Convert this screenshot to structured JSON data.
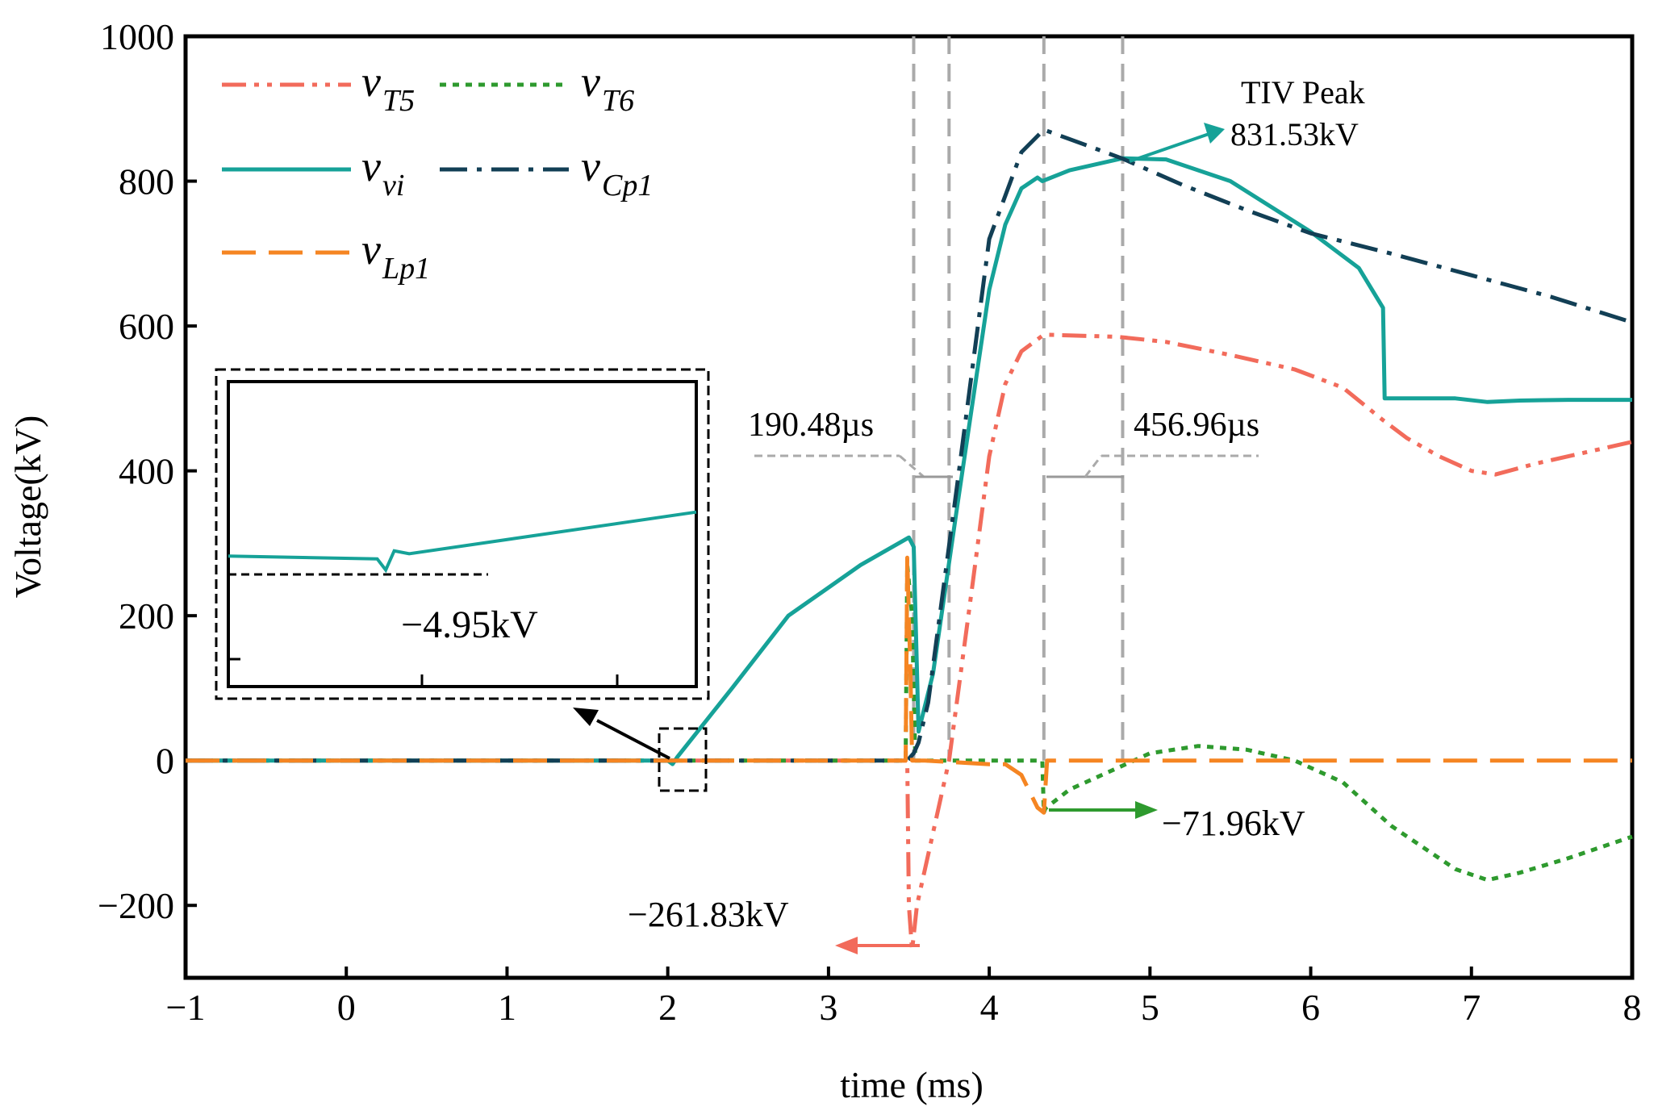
{
  "chart_data": {
    "type": "line",
    "title": "",
    "xlabel": "time (ms)",
    "ylabel": "Voltage(kV)",
    "xlim": [
      -1,
      8
    ],
    "ylim": [
      -300,
      1000
    ],
    "xticks": [
      -1,
      0,
      1,
      2,
      3,
      4,
      5,
      6,
      7,
      8
    ],
    "yticks": [
      -200,
      0,
      200,
      400,
      600,
      800,
      1000
    ],
    "xtick_labels": [
      "−1",
      "0",
      "1",
      "2",
      "3",
      "4",
      "5",
      "6",
      "7",
      "8"
    ],
    "ytick_labels": [
      "−200",
      "0",
      "200",
      "400",
      "600",
      "800",
      "1000"
    ],
    "grid": false,
    "legend_position": "top-left",
    "series": [
      {
        "key": "vT5",
        "legend_main": "v",
        "legend_sub": "T5",
        "color": "#f26b5b",
        "dash": "dashdotdot",
        "x": [
          -1,
          3.49,
          3.5,
          3.52,
          3.55,
          3.75,
          3.9,
          4.0,
          4.1,
          4.2,
          4.34,
          4.5,
          4.8,
          5.1,
          5.5,
          5.9,
          6.2,
          6.45,
          6.6,
          6.8,
          7.0,
          7.15,
          7.4,
          7.7,
          8.0
        ],
        "y": [
          0,
          0,
          -200,
          -261.83,
          -200,
          0,
          250,
          420,
          520,
          565,
          588,
          587,
          585,
          578,
          560,
          540,
          515,
          470,
          445,
          420,
          400,
          395,
          410,
          425,
          440
        ]
      },
      {
        "key": "vT6",
        "legend_main": "v",
        "legend_sub": "T6",
        "color": "#2e9a2e",
        "dash": "dot",
        "x": [
          -1,
          3.48,
          3.49,
          3.52,
          3.54,
          3.6,
          4.0,
          4.33,
          4.34,
          4.35,
          4.5,
          4.8,
          5.0,
          5.3,
          5.6,
          5.9,
          6.2,
          6.45,
          6.5,
          6.7,
          6.9,
          7.1,
          7.3,
          7.6,
          8.0
        ],
        "y": [
          0,
          0,
          270,
          200,
          0,
          0,
          0,
          0,
          -71.96,
          -66,
          -40,
          -10,
          10,
          20,
          15,
          0,
          -30,
          -80,
          -90,
          -120,
          -150,
          -165,
          -155,
          -135,
          -105
        ]
      },
      {
        "key": "vvi",
        "legend_main": "v",
        "legend_sub": "vi",
        "color": "#16a298",
        "dash": "solid",
        "x": [
          -1,
          2.0,
          2.03,
          2.06,
          2.4,
          2.75,
          3.2,
          3.5,
          3.53,
          3.56,
          3.65,
          3.8,
          4.0,
          4.1,
          4.2,
          4.3,
          4.33,
          4.5,
          4.83,
          5.1,
          5.5,
          6.0,
          6.3,
          6.45,
          6.46,
          6.9,
          7.1,
          7.3,
          7.6,
          8.0
        ],
        "y": [
          0,
          0,
          -4.95,
          5,
          100,
          200,
          270,
          308,
          295,
          40,
          120,
          350,
          650,
          740,
          790,
          805,
          800,
          815,
          831.53,
          830,
          800,
          730,
          680,
          625,
          500,
          500,
          495,
          497,
          498,
          498
        ]
      },
      {
        "key": "vCp1",
        "legend_main": "v",
        "legend_sub": "Cp1",
        "color": "#123f55",
        "dash": "dashdot",
        "x": [
          -1,
          3.49,
          3.53,
          3.56,
          3.62,
          3.8,
          4.0,
          4.2,
          4.34,
          4.6,
          4.83,
          5.2,
          5.6,
          6.0,
          6.5,
          7.0,
          7.5,
          8.0
        ],
        "y": [
          0,
          0,
          10,
          25,
          80,
          380,
          720,
          840,
          871,
          850,
          831,
          795,
          760,
          728,
          700,
          670,
          640,
          605
        ]
      },
      {
        "key": "vLp1",
        "legend_main": "v",
        "legend_sub": "Lp1",
        "color": "#f58522",
        "dash": "longdash",
        "x": [
          -1,
          3.48,
          3.49,
          3.51,
          3.52,
          3.6,
          4.0,
          4.1,
          4.2,
          4.3,
          4.34,
          4.36,
          4.5,
          8.0
        ],
        "y": [
          0,
          0,
          280,
          120,
          0,
          0,
          -5,
          -5,
          -20,
          -65,
          -71.96,
          0,
          0,
          0
        ]
      }
    ],
    "annotations": {
      "tiv_peak_label": "TIV Peak",
      "tiv_peak_value": "831.53kV",
      "vt5_min_label": "−261.83kV",
      "vt6_min_label": "−71.96kV",
      "interval1_label": "190.48µs",
      "interval2_label": "456.96µs",
      "inset_label": "−4.95kV",
      "vlines_x": [
        3.53,
        3.75,
        4.34,
        4.83
      ]
    },
    "inset": {
      "source_xlim": [
        1.96,
        2.18
      ],
      "source_ylim": [
        -45,
        45
      ],
      "x": [
        1.96,
        2.03,
        2.034,
        2.038,
        2.045,
        2.18
      ],
      "y": [
        -6.5,
        -7.3,
        -10.6,
        -4.95,
        -5.8,
        6.5
      ],
      "min_level": -10.5
    }
  }
}
